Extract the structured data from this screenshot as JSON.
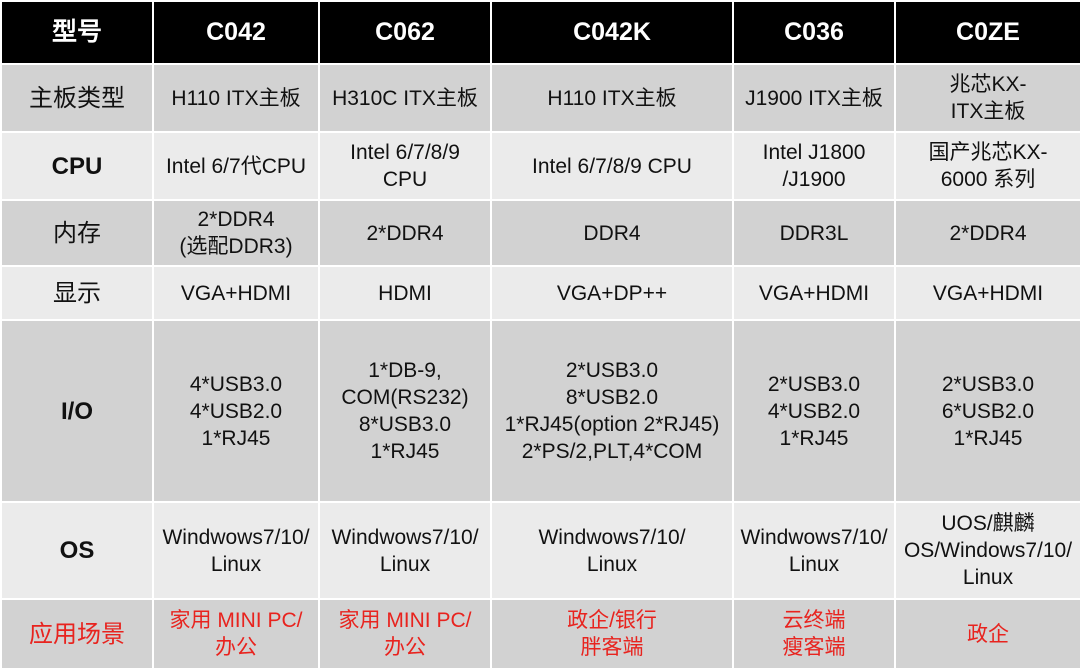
{
  "header": {
    "label": "型号",
    "models": [
      "C042",
      "C062",
      "C042K",
      "C036",
      "C0ZE"
    ]
  },
  "rows": {
    "board": {
      "label": "主板类型",
      "cells": [
        [
          "H110 ITX主板"
        ],
        [
          "H310C ITX主板"
        ],
        [
          "H110 ITX主板"
        ],
        [
          "J1900 ITX主板"
        ],
        [
          "兆芯KX-",
          "ITX主板"
        ]
      ]
    },
    "cpu": {
      "label": "CPU",
      "cells": [
        [
          "Intel 6/7代CPU"
        ],
        [
          "Intel 6/7/8/9",
          "CPU"
        ],
        [
          "Intel 6/7/8/9 CPU"
        ],
        [
          "Intel J1800",
          "/J1900"
        ],
        [
          "国产兆芯KX-",
          "6000 系列"
        ]
      ]
    },
    "memory": {
      "label": "内存",
      "cells": [
        [
          "2*DDR4",
          "(选配DDR3)"
        ],
        [
          "2*DDR4"
        ],
        [
          "DDR4"
        ],
        [
          "DDR3L"
        ],
        [
          "2*DDR4"
        ]
      ]
    },
    "display": {
      "label": "显示",
      "cells": [
        [
          "VGA+HDMI"
        ],
        [
          "HDMI"
        ],
        [
          "VGA+DP++"
        ],
        [
          "VGA+HDMI"
        ],
        [
          "VGA+HDMI"
        ]
      ]
    },
    "io": {
      "label": "I/O",
      "cells": [
        [
          "4*USB3.0",
          "4*USB2.0",
          "1*RJ45"
        ],
        [
          "1*DB-9,",
          "COM(RS232)",
          "8*USB3.0",
          "1*RJ45"
        ],
        [
          "2*USB3.0",
          "8*USB2.0",
          "1*RJ45(option 2*RJ45)",
          "2*PS/2,PLT,4*COM"
        ],
        [
          "2*USB3.0",
          "4*USB2.0",
          "1*RJ45"
        ],
        [
          "2*USB3.0",
          "6*USB2.0",
          "1*RJ45"
        ]
      ]
    },
    "os": {
      "label": "OS",
      "cells": [
        [
          "Windwows7/10/",
          "Linux"
        ],
        [
          "Windwows7/10/",
          "Linux"
        ],
        [
          "Windwows7/10/",
          "Linux"
        ],
        [
          "Windwows7/10/",
          "Linux"
        ],
        [
          "UOS/麒麟",
          "OS/Windows7/10/",
          "Linux"
        ]
      ]
    },
    "scenario": {
      "label": "应用场景",
      "cells": [
        [
          "家用 MINI PC/",
          "办公"
        ],
        [
          "家用 MINI PC/",
          "办公"
        ],
        [
          "政企/银行",
          "胖客端"
        ],
        [
          "云终端",
          "瘦客端"
        ],
        [
          "政企"
        ]
      ]
    }
  },
  "colors": {
    "header_bg": "#000000",
    "header_text": "#ffffff",
    "row_dark": "#d2d2d2",
    "row_light": "#ebebeb",
    "accent_red": "#e8231e"
  }
}
